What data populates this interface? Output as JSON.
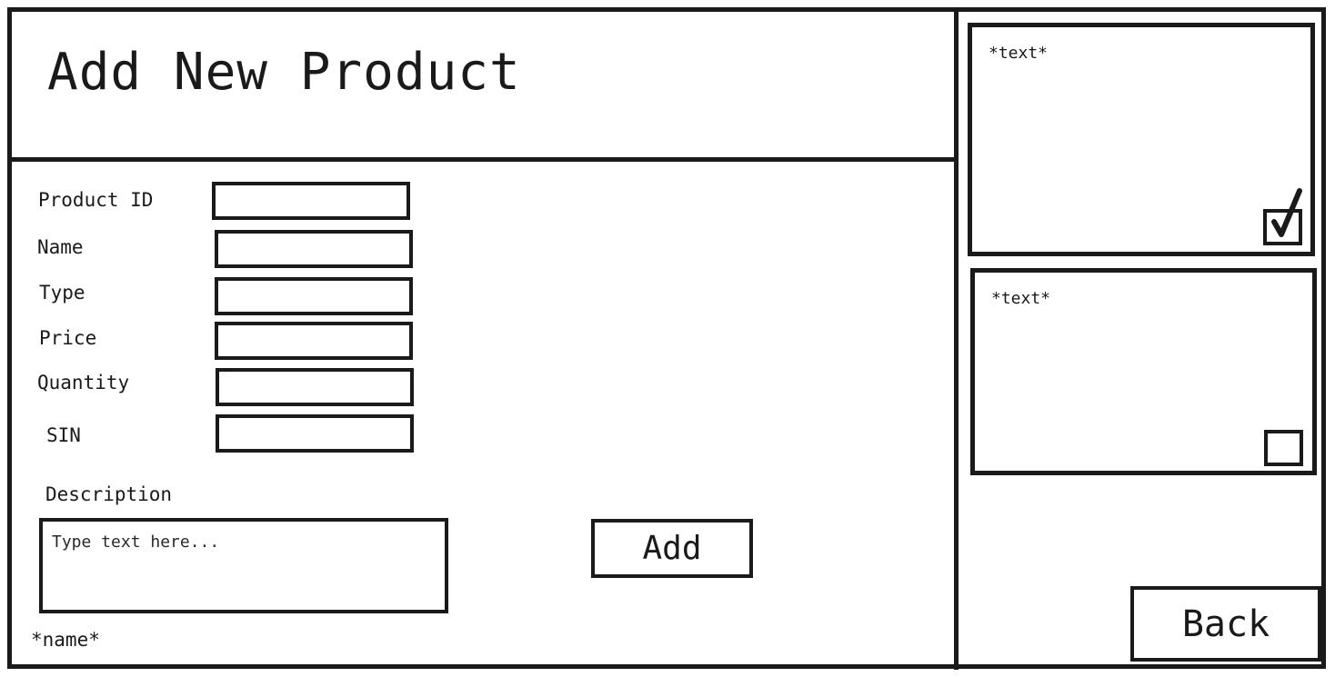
{
  "header": {
    "title": "Add New Product"
  },
  "form": {
    "fields": [
      {
        "label": "Product ID",
        "value": ""
      },
      {
        "label": "Name",
        "value": ""
      },
      {
        "label": "Type",
        "value": ""
      },
      {
        "label": "Price",
        "value": ""
      },
      {
        "label": "Quantity",
        "value": ""
      },
      {
        "label": "SIN",
        "value": ""
      }
    ],
    "description": {
      "label": "Description",
      "placeholder": "Type text here..."
    },
    "add_label": "Add",
    "footer_name": "*name*"
  },
  "side_panel": {
    "cards": [
      {
        "text": "*text*",
        "checked": true
      },
      {
        "text": "*text*",
        "checked": false
      }
    ],
    "back_label": "Back"
  },
  "icons": {
    "check": "check-mark-icon"
  },
  "colors": {
    "ink": "#1a1a1a",
    "background": "#ffffff"
  }
}
